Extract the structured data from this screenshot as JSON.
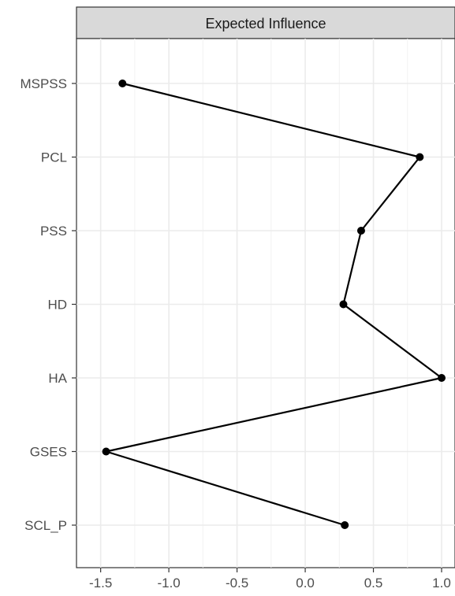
{
  "chart_data": {
    "type": "line",
    "title": "",
    "panel_title": "Expected Influence",
    "xlabel": "",
    "ylabel": "",
    "xlim": [
      -1.55,
      1.1
    ],
    "x_ticks": [
      -1.5,
      -1.0,
      -0.5,
      0.0,
      0.5,
      1.0
    ],
    "x_tick_labels": [
      "-1.5",
      "-1.0",
      "-0.5",
      "0.0",
      "0.5",
      "1.0"
    ],
    "categories": [
      "MSPSS",
      "PCL",
      "PSS",
      "HD",
      "HA",
      "GSES",
      "SCL_P"
    ],
    "values": [
      -1.34,
      0.84,
      0.41,
      0.28,
      1.0,
      -1.46,
      0.29
    ],
    "grid": true,
    "legend": "none",
    "colors": {
      "line": "#000000",
      "strip_fill": "#d9d9d9",
      "grid_major": "#ebebeb"
    }
  }
}
